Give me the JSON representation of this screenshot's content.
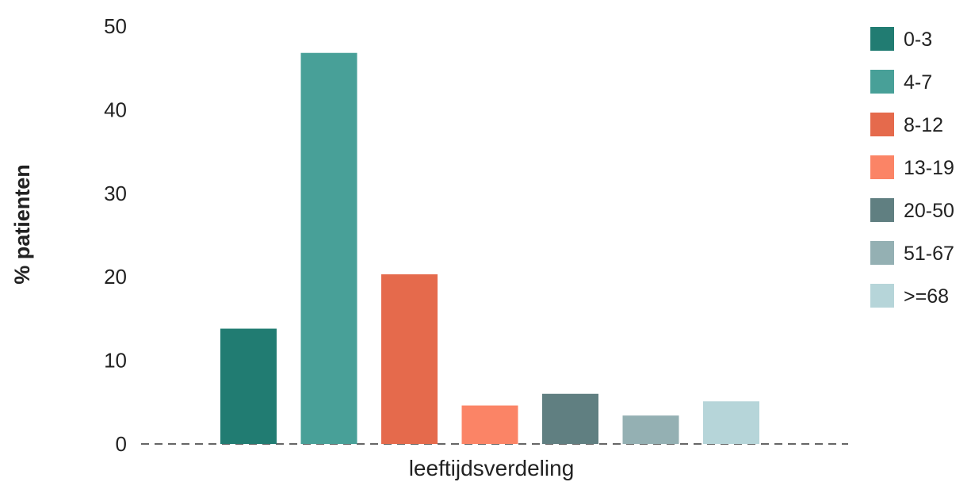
{
  "chart_data": {
    "type": "bar",
    "title": "",
    "xlabel": "leeftijdsverdeling",
    "ylabel": "% patienten",
    "ylim": [
      0,
      50
    ],
    "yticks": [
      0,
      10,
      20,
      30,
      40,
      50
    ],
    "grid": false,
    "baseline": "dashed",
    "legend_position": "right",
    "categories": [
      "0-3",
      "4-7",
      "8-12",
      "13-19",
      "20-50",
      "51-67",
      ">=68"
    ],
    "values": [
      13.8,
      46.8,
      20.3,
      4.6,
      6.0,
      3.4,
      5.1
    ],
    "colors": [
      "#217c72",
      "#48a098",
      "#e56a4c",
      "#fb8466",
      "#607f81",
      "#94b0b3",
      "#b6d5d9"
    ]
  }
}
